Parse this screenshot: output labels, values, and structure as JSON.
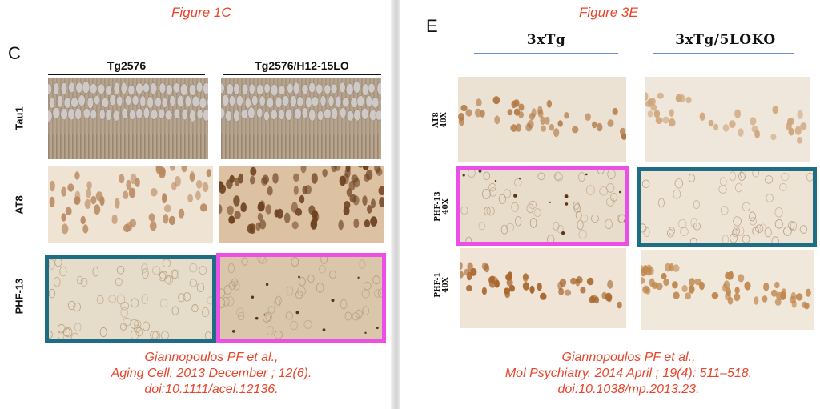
{
  "left": {
    "figure_title": "Figure 1C",
    "panel_letter": "C",
    "columns": [
      "Tg2576",
      "Tg2576/H12-15LO"
    ],
    "rows": [
      "Tau1",
      "AT8",
      "PHF-13"
    ],
    "citation": [
      "Giannopoulos PF et al.,",
      "Aging Cell. 2013 December ; 12(6).",
      "doi:10.1111/acel.12136."
    ]
  },
  "right": {
    "figure_title": "Figure 3E",
    "panel_letter": "E",
    "columns": [
      "3xTg",
      "3xTg/5LOKO"
    ],
    "rows": [
      {
        "line1": "AT8",
        "line2": "40X"
      },
      {
        "line1": "PHF-13",
        "line2": "40X"
      },
      {
        "line1": "PHF-1",
        "line2": "40X"
      }
    ],
    "citation": [
      "Giannopoulos PF et al.,",
      "Mol Psychiatry. 2014 April ; 19(4): 511–518.",
      "doi:10.1038/mp.2013.23."
    ]
  },
  "colors": {
    "citation_red": "#e8452c",
    "highlight_blue": "#1d6e84",
    "highlight_pink": "#ec4ee8",
    "rule_blue": "#6a8fd6"
  }
}
